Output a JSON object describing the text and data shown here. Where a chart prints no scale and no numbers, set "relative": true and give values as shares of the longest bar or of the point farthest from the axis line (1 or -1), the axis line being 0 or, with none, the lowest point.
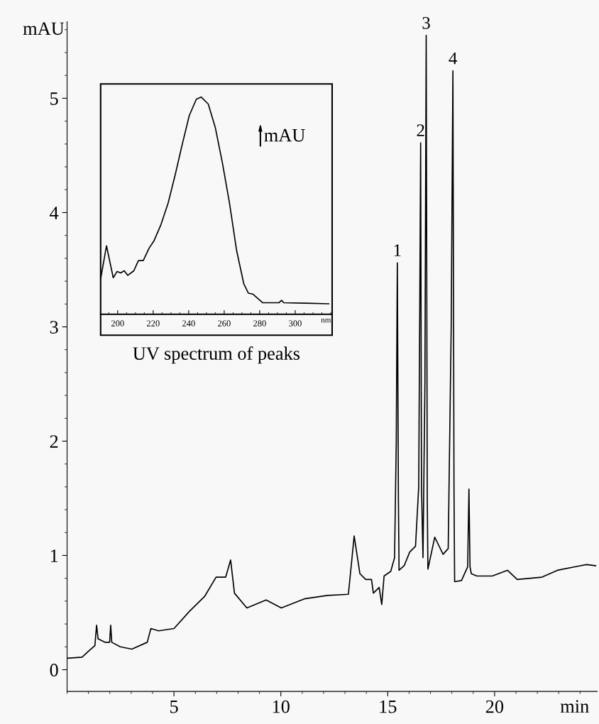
{
  "chart_data": [
    {
      "type": "line",
      "xlabel": "min",
      "ylabel": "mAU",
      "color": "#000000",
      "x": [
        0,
        0.7,
        1.05,
        1.3,
        1.38,
        1.45,
        1.77,
        1.99,
        2.04,
        2.09,
        2.49,
        3.03,
        3.75,
        3.92,
        4.28,
        5.0,
        5.72,
        6.43,
        6.97,
        7.42,
        7.65,
        7.83,
        8.41,
        9.31,
        10.02,
        11.1,
        12.18,
        13.16,
        13.43,
        13.7,
        13.97,
        14.24,
        14.33,
        14.6,
        14.72,
        14.83,
        15.14,
        15.32,
        15.4,
        15.45,
        15.5,
        15.53,
        15.77,
        16.03,
        16.3,
        16.45,
        16.5,
        16.54,
        16.58,
        16.65,
        16.74,
        16.8,
        16.85,
        16.88,
        17.2,
        17.38,
        17.59,
        17.83,
        17.97,
        18.05,
        18.1,
        18.13,
        18.45,
        18.74,
        18.8,
        18.85,
        18.91,
        19.17,
        19.89,
        20.6,
        21.06,
        22.22,
        22.94,
        24.02,
        24.3,
        24.73
      ],
      "values": [
        0.1,
        0.11,
        0.17,
        0.21,
        0.39,
        0.27,
        0.24,
        0.24,
        0.39,
        0.24,
        0.2,
        0.18,
        0.24,
        0.36,
        0.34,
        0.36,
        0.51,
        0.64,
        0.81,
        0.81,
        0.96,
        0.67,
        0.54,
        0.61,
        0.54,
        0.62,
        0.65,
        0.66,
        1.17,
        0.84,
        0.79,
        0.79,
        0.67,
        0.72,
        0.57,
        0.82,
        0.86,
        0.98,
        2.0,
        3.56,
        1.5,
        0.87,
        0.91,
        1.03,
        1.08,
        1.6,
        3.2,
        4.61,
        1.6,
        0.98,
        2.5,
        5.55,
        1.5,
        0.88,
        1.16,
        1.09,
        1.01,
        1.06,
        3.0,
        5.24,
        1.6,
        0.77,
        0.78,
        0.9,
        1.58,
        0.9,
        0.84,
        0.82,
        0.82,
        0.87,
        0.79,
        0.81,
        0.87,
        0.91,
        0.92,
        0.91
      ],
      "xlim": [
        0,
        24.8
      ],
      "ylim": [
        -0.19,
        5.67
      ],
      "xticks": [
        5,
        10,
        15,
        20
      ],
      "yticks": [
        0,
        1,
        2,
        3,
        4,
        5
      ],
      "annotations": [
        {
          "text": "1",
          "x": 15.45,
          "y": 3.56
        },
        {
          "text": "2",
          "x": 16.54,
          "y": 4.61
        },
        {
          "text": "3",
          "x": 16.8,
          "y": 5.55
        },
        {
          "text": "4",
          "x": 18.05,
          "y": 5.24
        }
      ]
    },
    {
      "type": "line",
      "relative": true,
      "title": "UV spectrum of peaks",
      "xlabel": "nm",
      "ylabel": "mAU",
      "color": "#000000",
      "x": [
        190.4,
        193.7,
        197.5,
        199.7,
        201.7,
        203.7,
        205.7,
        209.1,
        211.7,
        214.4,
        217.7,
        220.4,
        224.4,
        228.4,
        232.4,
        236.4,
        240.3,
        244.3,
        247.0,
        251.0,
        255.0,
        259.0,
        263.0,
        267.0,
        271.0,
        273.6,
        276.3,
        281.6,
        290.9,
        292.3,
        293.6,
        305.6,
        318.9
      ],
      "values": [
        0.162,
        0.315,
        0.168,
        0.197,
        0.19,
        0.2,
        0.179,
        0.2,
        0.247,
        0.247,
        0.304,
        0.337,
        0.413,
        0.511,
        0.642,
        0.783,
        0.914,
        0.99,
        1,
        0.968,
        0.859,
        0.696,
        0.511,
        0.293,
        0.141,
        0.097,
        0.092,
        0.053,
        0.053,
        0.064,
        0.053,
        0.051,
        0.048
      ],
      "xlim": [
        190.4,
        320.8
      ],
      "xticks": [
        200,
        220,
        240,
        260,
        280,
        300
      ],
      "tick_labels": "x"
    }
  ]
}
